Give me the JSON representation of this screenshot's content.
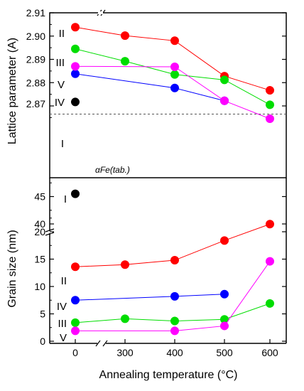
{
  "chart_data": [
    {
      "type": "scatter",
      "ylabel": "Lattice parameter (A)",
      "xlabel": "",
      "ylim": [
        2.86,
        2.91
      ],
      "yticks": [
        "2.87",
        "2.88",
        "2.89",
        "2.90",
        "2.91"
      ],
      "xticks": [],
      "grid": false,
      "series": [
        {
          "name": "I",
          "color": "#000000",
          "points": [
            [
              0,
              2.8717
            ]
          ]
        },
        {
          "name": "II",
          "color": "#ff0000",
          "points": [
            [
              0,
              2.9038
            ],
            [
              300,
              2.9002
            ],
            [
              400,
              2.898
            ],
            [
              500,
              2.8828
            ],
            [
              600,
              2.8767
            ]
          ]
        },
        {
          "name": "III",
          "color": "#00dd00",
          "points": [
            [
              0,
              2.8945
            ],
            [
              300,
              2.8892
            ],
            [
              400,
              2.8835
            ],
            [
              500,
              2.8812
            ],
            [
              600,
              2.8705
            ]
          ]
        },
        {
          "name": "IV",
          "color": "#0000ff",
          "points": [
            [
              0,
              2.8838
            ],
            [
              400,
              2.8777
            ],
            [
              500,
              2.8722
            ]
          ]
        },
        {
          "name": "V",
          "color": "#ff00ff",
          "points": [
            [
              0,
              2.887
            ],
            [
              400,
              2.8868
            ],
            [
              500,
              2.8722
            ],
            [
              600,
              2.8645
            ]
          ]
        }
      ],
      "reference_line": {
        "label": "αFe(tab.)",
        "y": 2.8665,
        "style": "dashed"
      }
    },
    {
      "type": "scatter",
      "ylabel": "Grain size (nm)",
      "xlabel": "Annealing temperature (°C)",
      "ylim": [
        0,
        48
      ],
      "y_break": [
        25,
        40
      ],
      "yticks": [
        "0",
        "5",
        "10",
        "15",
        "20",
        "40",
        "45"
      ],
      "xticks": [
        "0",
        "300",
        "400",
        "500",
        "600"
      ],
      "x_break": [
        0,
        300
      ],
      "grid": false,
      "series": [
        {
          "name": "I",
          "color": "#000000",
          "points": [
            [
              0,
              45.5
            ]
          ]
        },
        {
          "name": "II",
          "color": "#ff0000",
          "points": [
            [
              0,
              13.6
            ],
            [
              300,
              14.0
            ],
            [
              400,
              14.8
            ],
            [
              500,
              18.4
            ],
            [
              600,
              21.4
            ]
          ]
        },
        {
          "name": "III",
          "color": "#00dd00",
          "points": [
            [
              0,
              3.4
            ],
            [
              300,
              4.1
            ],
            [
              400,
              3.7
            ],
            [
              500,
              4.0
            ],
            [
              600,
              6.9
            ]
          ]
        },
        {
          "name": "IV",
          "color": "#0000ff",
          "points": [
            [
              0,
              7.5
            ],
            [
              400,
              8.2
            ],
            [
              500,
              8.6
            ]
          ]
        },
        {
          "name": "V",
          "color": "#ff00ff",
          "points": [
            [
              0,
              1.9
            ],
            [
              400,
              1.9
            ],
            [
              500,
              2.8
            ],
            [
              600,
              14.6
            ]
          ]
        }
      ]
    }
  ]
}
